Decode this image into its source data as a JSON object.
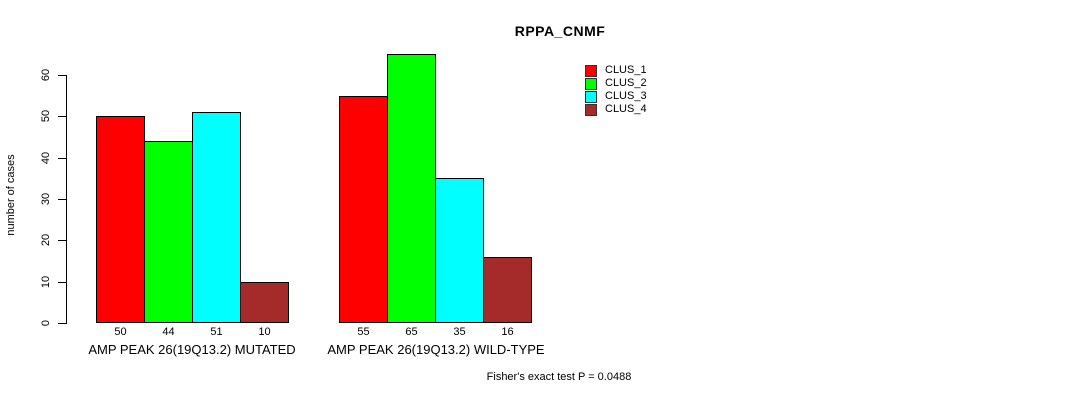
{
  "chart_data": {
    "type": "bar",
    "title": "RPPA_CNMF",
    "ylabel": "number of cases",
    "xlabel": "",
    "ylim": [
      0,
      65
    ],
    "yticks": [
      0,
      10,
      20,
      30,
      40,
      50,
      60
    ],
    "grid": false,
    "legend_position": "top-right",
    "legend": [
      {
        "label": "CLUS_1",
        "color": "#FF0000"
      },
      {
        "label": "CLUS_2",
        "color": "#00FF00"
      },
      {
        "label": "CLUS_3",
        "color": "#00FFFF"
      },
      {
        "label": "CLUS_4",
        "color": "#A52A2A"
      }
    ],
    "series_colors": [
      "#FF0000",
      "#00FF00",
      "#00FFFF",
      "#A52A2A"
    ],
    "groups": [
      {
        "label": "AMP PEAK 26(19Q13.2) MUTATED",
        "values": [
          50,
          44,
          51,
          10
        ]
      },
      {
        "label": "AMP PEAK 26(19Q13.2) WILD-TYPE",
        "values": [
          55,
          65,
          35,
          16
        ]
      }
    ],
    "annotation": "Fisher's exact test P = 0.0488"
  }
}
